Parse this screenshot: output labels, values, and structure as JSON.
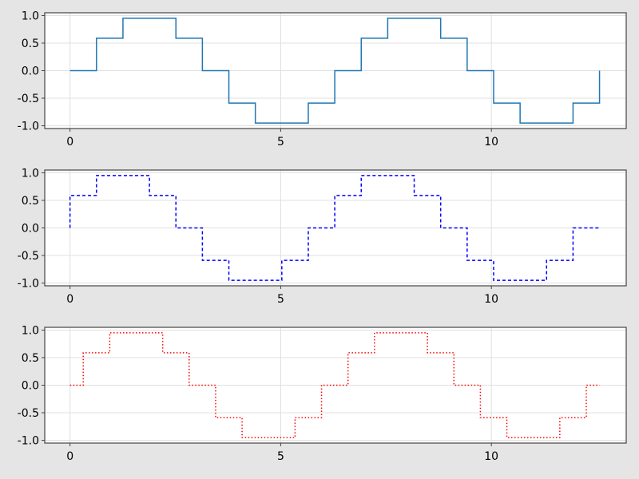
{
  "chart_data": [
    {
      "type": "line",
      "step": "post",
      "line_style": "solid",
      "color": "#1f77b4",
      "x": [
        0,
        0.6283,
        1.2566,
        1.885,
        2.5133,
        3.1416,
        3.7699,
        4.3982,
        5.0265,
        5.6549,
        6.2832,
        6.9115,
        7.5398,
        8.1681,
        8.7965,
        9.4248,
        10.0531,
        10.6814,
        11.3097,
        11.938,
        12.5664
      ],
      "y": [
        0,
        0.588,
        0.951,
        0.951,
        0.588,
        0,
        -0.588,
        -0.951,
        -0.951,
        -0.588,
        0,
        0.588,
        0.951,
        0.951,
        0.588,
        0,
        -0.588,
        -0.951,
        -0.951,
        -0.588,
        0
      ],
      "xlim": [
        -0.6,
        13.2
      ],
      "ylim": [
        -1.05,
        1.05
      ],
      "xticks": [
        0,
        5,
        10
      ],
      "xtick_labels": [
        "0",
        "5",
        "10"
      ],
      "yticks": [
        1.0,
        0.5,
        0.0,
        -0.5,
        -1.0
      ],
      "ytick_labels": [
        "1.0",
        "0.5",
        "0.0",
        "-0.5",
        "-1.0"
      ],
      "grid": true
    },
    {
      "type": "line",
      "step": "pre",
      "line_style": "dashed",
      "color": "#0000ff",
      "x": [
        0,
        0.6283,
        1.2566,
        1.885,
        2.5133,
        3.1416,
        3.7699,
        4.3982,
        5.0265,
        5.6549,
        6.2832,
        6.9115,
        7.5398,
        8.1681,
        8.7965,
        9.4248,
        10.0531,
        10.6814,
        11.3097,
        11.938,
        12.5664
      ],
      "y": [
        0,
        0.588,
        0.951,
        0.951,
        0.588,
        0,
        -0.588,
        -0.951,
        -0.951,
        -0.588,
        0,
        0.588,
        0.951,
        0.951,
        0.588,
        0,
        -0.588,
        -0.951,
        -0.951,
        -0.588,
        0
      ],
      "xlim": [
        -0.6,
        13.2
      ],
      "ylim": [
        -1.05,
        1.05
      ],
      "xticks": [
        0,
        5,
        10
      ],
      "xtick_labels": [
        "0",
        "5",
        "10"
      ],
      "yticks": [
        1.0,
        0.5,
        0.0,
        -0.5,
        -1.0
      ],
      "ytick_labels": [
        "1.0",
        "0.5",
        "0.0",
        "-0.5",
        "-1.0"
      ],
      "grid": true
    },
    {
      "type": "line",
      "step": "mid",
      "line_style": "dotted",
      "color": "#ff0000",
      "x": [
        0,
        0.6283,
        1.2566,
        1.885,
        2.5133,
        3.1416,
        3.7699,
        4.3982,
        5.0265,
        5.6549,
        6.2832,
        6.9115,
        7.5398,
        8.1681,
        8.7965,
        9.4248,
        10.0531,
        10.6814,
        11.3097,
        11.938,
        12.5664
      ],
      "y": [
        0,
        0.588,
        0.951,
        0.951,
        0.588,
        0,
        -0.588,
        -0.951,
        -0.951,
        -0.588,
        0,
        0.588,
        0.951,
        0.951,
        0.588,
        0,
        -0.588,
        -0.951,
        -0.951,
        -0.588,
        0
      ],
      "xlim": [
        -0.6,
        13.2
      ],
      "ylim": [
        -1.05,
        1.05
      ],
      "xticks": [
        0,
        5,
        10
      ],
      "xtick_labels": [
        "0",
        "5",
        "10"
      ],
      "yticks": [
        1.0,
        0.5,
        0.0,
        -0.5,
        -1.0
      ],
      "ytick_labels": [
        "1.0",
        "0.5",
        "0.0",
        "-0.5",
        "-1.0"
      ],
      "grid": true
    }
  ]
}
